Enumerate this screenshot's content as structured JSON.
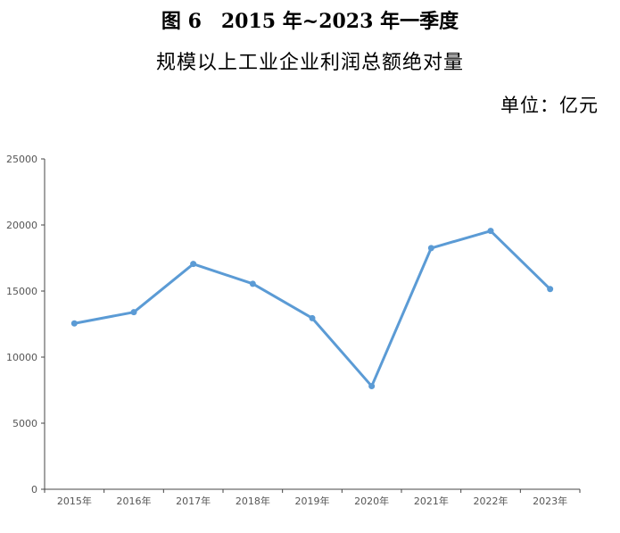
{
  "header": {
    "title_line1": "图 6　2015 年~2023 年一季度",
    "title_line2": "规模以上工业企业利润总额绝对量",
    "unit": "单位：亿元"
  },
  "chart_data": {
    "type": "line",
    "title": "",
    "xlabel": "",
    "ylabel": "",
    "categories": [
      "2015年",
      "2016年",
      "2017年",
      "2018年",
      "2019年",
      "2020年",
      "2021年",
      "2022年",
      "2023年"
    ],
    "series": [
      {
        "values": [
          12550,
          13400,
          17050,
          15550,
          12950,
          7800,
          18250,
          19550,
          15150
        ],
        "color": "#5b9bd5"
      }
    ],
    "ylim": [
      0,
      25000
    ],
    "yticks": [
      0,
      5000,
      10000,
      15000,
      20000,
      25000
    ],
    "grid": false,
    "legend": "none"
  }
}
